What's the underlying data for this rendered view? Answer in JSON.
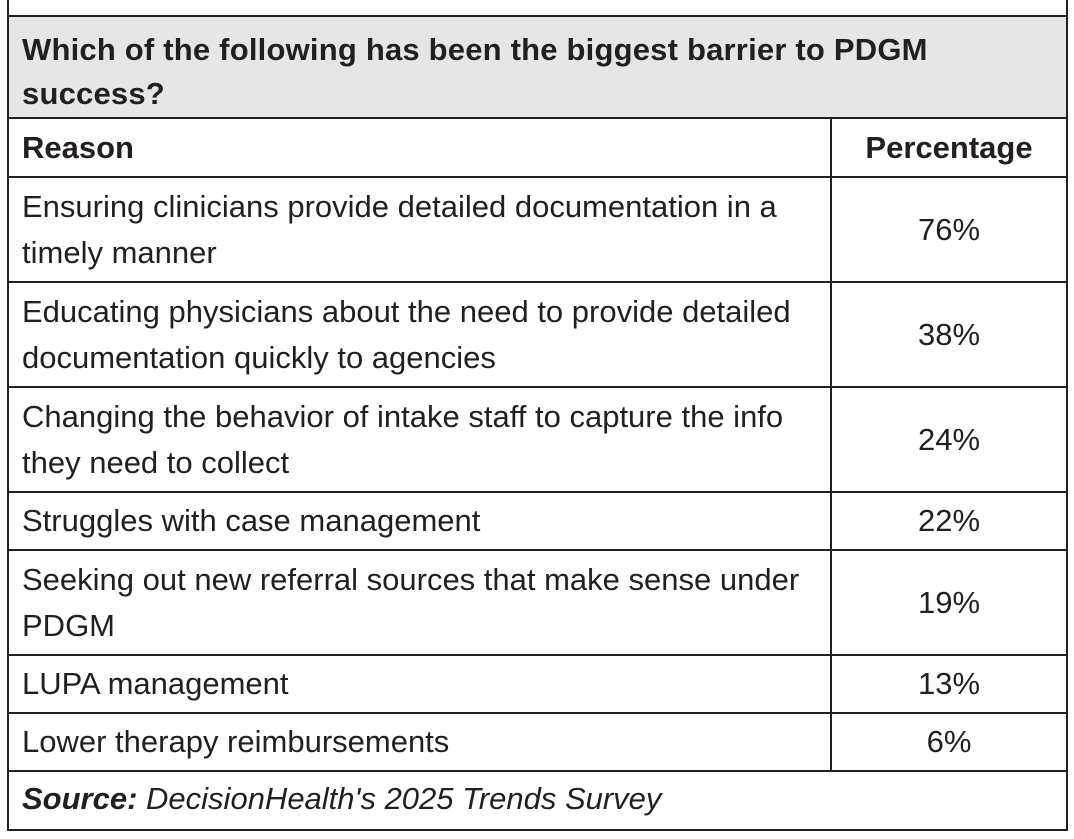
{
  "chart_data": {
    "type": "table",
    "title": "Which of the following has been the biggest barrier to PDGM success?",
    "columns": [
      "Reason",
      "Percentage"
    ],
    "rows": [
      {
        "reason": "Ensuring clinicians provide detailed documentation in a timely manner",
        "percentage": "76%",
        "value": 76
      },
      {
        "reason": "Educating physicians about the need to provide detailed documentation quickly to agencies",
        "percentage": "38%",
        "value": 38
      },
      {
        "reason": "Changing the behavior of intake staff to capture the info they need to collect",
        "percentage": "24%",
        "value": 24
      },
      {
        "reason": "Struggles with case management",
        "percentage": "22%",
        "value": 22
      },
      {
        "reason": "Seeking out new referral sources that make sense under PDGM",
        "percentage": "19%",
        "value": 19
      },
      {
        "reason": "LUPA management",
        "percentage": "13%",
        "value": 13
      },
      {
        "reason": "Lower therapy reimbursements",
        "percentage": "6%",
        "value": 6
      }
    ],
    "source_label": "Source:",
    "source_text": "DecisionHealth's 2025 Trends Survey"
  },
  "colors": {
    "header_background": "#e6e6e6",
    "rule": "#231f20",
    "text": "#231f20"
  }
}
